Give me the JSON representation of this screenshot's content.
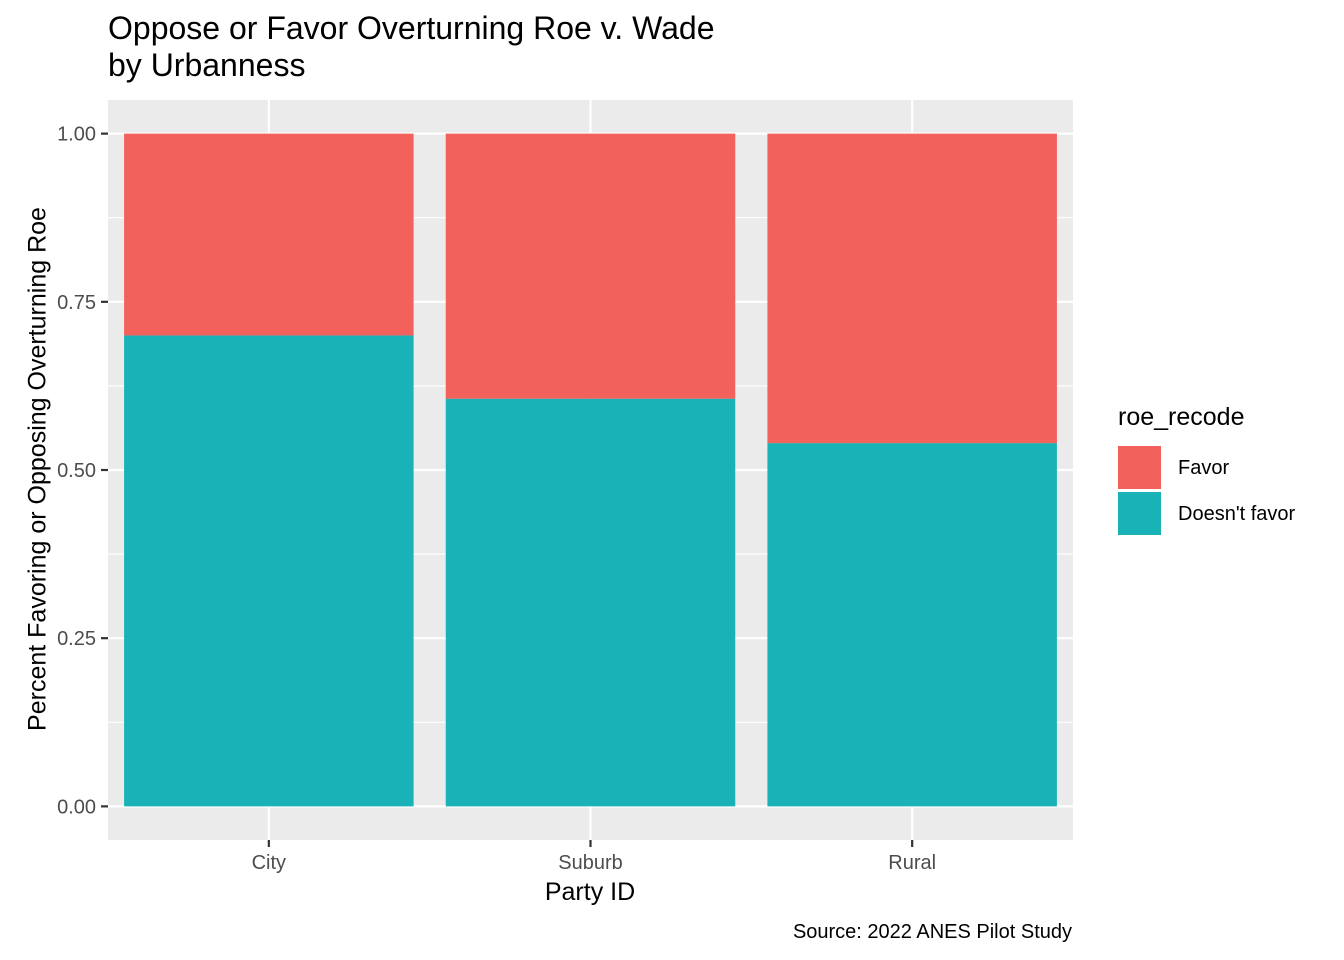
{
  "chart_data": {
    "type": "bar",
    "stacked": true,
    "title_lines": [
      "Oppose or Favor Overturning Roe v. Wade",
      "by Urbanness"
    ],
    "xlabel": "Party ID",
    "ylabel": "Percent Favoring or Opposing Overturning Roe",
    "caption": "Source: 2022 ANES Pilot Study",
    "categories": [
      "City",
      "Suburb",
      "Rural"
    ],
    "series": [
      {
        "name": "Doesn't favor",
        "color": "#19B3B7",
        "values": [
          0.7,
          0.606,
          0.54
        ]
      },
      {
        "name": "Favor",
        "color": "#F2615C",
        "values": [
          0.3,
          0.394,
          0.46
        ]
      }
    ],
    "ylim": [
      -0.05,
      1.05
    ],
    "yticks": [
      0.0,
      0.25,
      0.5,
      0.75,
      1.0
    ],
    "ytick_labels": [
      "0.00",
      "0.25",
      "0.50",
      "0.75",
      "1.00"
    ],
    "grid": true,
    "legend": {
      "title": "roe_recode",
      "placement": "right",
      "entries": [
        {
          "label": "Favor",
          "color": "#F2615C"
        },
        {
          "label": "Doesn't favor",
          "color": "#19B3B7"
        }
      ]
    }
  }
}
